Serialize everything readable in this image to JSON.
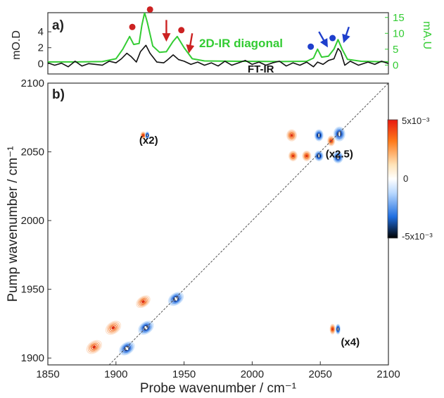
{
  "chart_data": [
    {
      "type": "line",
      "panel_label": "a)",
      "ylabel_left": "mO.D",
      "ylabel_right": "mA.U",
      "left_ticks": [
        "0",
        "2",
        "4"
      ],
      "right_ticks": [
        "0",
        "5",
        "10",
        "15"
      ],
      "left_ylim": [
        -1.3,
        6.4
      ],
      "right_ylim": [
        -2.8,
        16.5
      ],
      "xlim": [
        1850,
        2100
      ],
      "series": [
        {
          "name": "2D-IR diagonal",
          "color": "#33cc33",
          "axis": "right",
          "points": [
            [
              1850,
              1.0
            ],
            [
              1870,
              1.0
            ],
            [
              1890,
              1.1
            ],
            [
              1900,
              2.0
            ],
            [
              1905,
              5.0
            ],
            [
              1910,
              9.0
            ],
            [
              1913,
              6.5
            ],
            [
              1917,
              6.8
            ],
            [
              1919,
              12.5
            ],
            [
              1921,
              16.5
            ],
            [
              1923,
              13.5
            ],
            [
              1927,
              6.0
            ],
            [
              1932,
              4.0
            ],
            [
              1937,
              4.2
            ],
            [
              1942,
              7.5
            ],
            [
              1945,
              9.0
            ],
            [
              1950,
              5.5
            ],
            [
              1956,
              2.0
            ],
            [
              1965,
              1.3
            ],
            [
              1990,
              1.2
            ],
            [
              2020,
              1.1
            ],
            [
              2040,
              1.2
            ],
            [
              2045,
              2.2
            ],
            [
              2048,
              5.0
            ],
            [
              2051,
              2.5
            ],
            [
              2056,
              2.8
            ],
            [
              2060,
              5.0
            ],
            [
              2063,
              8.0
            ],
            [
              2066,
              5.0
            ],
            [
              2070,
              1.8
            ],
            [
              2080,
              1.2
            ],
            [
              2100,
              1.0
            ]
          ]
        },
        {
          "name": "FT-IR",
          "color": "#111111",
          "axis": "left",
          "points": [
            [
              1850,
              0.1
            ],
            [
              1855,
              -0.2
            ],
            [
              1860,
              0.05
            ],
            [
              1865,
              -0.4
            ],
            [
              1870,
              0.3
            ],
            [
              1875,
              -0.3
            ],
            [
              1880,
              0.0
            ],
            [
              1885,
              -0.1
            ],
            [
              1890,
              -0.2
            ],
            [
              1895,
              0.3
            ],
            [
              1900,
              0.1
            ],
            [
              1904,
              0.6
            ],
            [
              1908,
              1.3
            ],
            [
              1911,
              0.9
            ],
            [
              1915,
              0.2
            ],
            [
              1918,
              1.5
            ],
            [
              1922,
              2.3
            ],
            [
              1925,
              1.3
            ],
            [
              1930,
              0.2
            ],
            [
              1935,
              0.1
            ],
            [
              1938,
              0.5
            ],
            [
              1942,
              1.1
            ],
            [
              1946,
              0.5
            ],
            [
              1950,
              0.3
            ],
            [
              1955,
              -0.1
            ],
            [
              1960,
              0.2
            ],
            [
              1965,
              -0.2
            ],
            [
              1970,
              0.1
            ],
            [
              1975,
              -0.3
            ],
            [
              1980,
              0.3
            ],
            [
              1985,
              -0.2
            ],
            [
              1990,
              0.1
            ],
            [
              1995,
              0.4
            ],
            [
              2000,
              -0.1
            ],
            [
              2005,
              0.2
            ],
            [
              2010,
              -0.2
            ],
            [
              2015,
              0.1
            ],
            [
              2020,
              0.3
            ],
            [
              2025,
              -0.3
            ],
            [
              2030,
              0.1
            ],
            [
              2035,
              -0.2
            ],
            [
              2040,
              0.2
            ],
            [
              2045,
              -0.4
            ],
            [
              2048,
              0.2
            ],
            [
              2052,
              -0.1
            ],
            [
              2056,
              0.4
            ],
            [
              2060,
              0.6
            ],
            [
              2063,
              1.9
            ],
            [
              2065,
              1.5
            ],
            [
              2068,
              -0.2
            ],
            [
              2072,
              0.3
            ],
            [
              2078,
              -0.2
            ],
            [
              2085,
              0.2
            ],
            [
              2090,
              -0.1
            ],
            [
              2095,
              0.3
            ],
            [
              2100,
              0.0
            ]
          ]
        }
      ],
      "annotations": [
        {
          "type": "dot",
          "color": "#cc2222",
          "x": 1912,
          "y": 12.0
        },
        {
          "type": "dot",
          "color": "#cc2222",
          "x": 1925,
          "y": 17.5
        },
        {
          "type": "dot",
          "color": "#cc2222",
          "x": 1948,
          "y": 11.0
        },
        {
          "type": "dot",
          "color": "#1f3fcc",
          "x": 2043,
          "y": 5.8
        },
        {
          "type": "dot",
          "color": "#1f3fcc",
          "x": 2059,
          "y": 8.5
        },
        {
          "type": "arrow",
          "color": "#cc2222",
          "x": 1937,
          "y": 14.2,
          "dx": 0,
          "dy": -5.5
        },
        {
          "type": "arrow",
          "color": "#cc2222",
          "x": 1956,
          "y": 10.0,
          "dx": -2.0,
          "dy": -5.0
        },
        {
          "type": "arrow",
          "color": "#1f3fcc",
          "x": 2049,
          "y": 10.5,
          "dx": 5.0,
          "dy": -3.8
        },
        {
          "type": "arrow",
          "color": "#1f3fcc",
          "x": 2071,
          "y": 12.0,
          "dx": -3.0,
          "dy": -3.8
        }
      ]
    },
    {
      "type": "heatmap",
      "panel_label": "b)",
      "xlabel": "Probe wavenumber / cm⁻¹",
      "ylabel": "Pump wavenumber / cm⁻¹",
      "xlim": [
        1850,
        2100
      ],
      "ylim": [
        1895,
        2100
      ],
      "x_ticks": [
        1850,
        1900,
        1950,
        2000,
        2050,
        2100
      ],
      "y_ticks": [
        1900,
        1950,
        2000,
        2050,
        2100
      ],
      "colorbar": {
        "max_label": "5x10⁻³",
        "mid_label": "0",
        "min_label": "-5x10⁻³",
        "range": [
          -0.005,
          0.005
        ]
      },
      "diagonal_line": true,
      "scale_labels": [
        {
          "text": "(x2)",
          "x": 1924,
          "y": 2056
        },
        {
          "text": "(x2.5)",
          "x": 2064,
          "y": 2046
        },
        {
          "text": "(x4)",
          "x": 2072,
          "y": 1909
        }
      ],
      "peaks": [
        {
          "x": 1884,
          "y": 1908,
          "rx": 6,
          "ry": 4,
          "sign": 1,
          "rot": -35
        },
        {
          "x": 1898,
          "y": 1922,
          "rx": 6,
          "ry": 4,
          "sign": 1,
          "rot": -35
        },
        {
          "x": 1920,
          "y": 1941,
          "rx": 5.5,
          "ry": 3.5,
          "sign": 1,
          "rot": -35
        },
        {
          "x": 1908,
          "y": 1907,
          "rx": 6,
          "ry": 4,
          "sign": -1,
          "rot": -35
        },
        {
          "x": 1922,
          "y": 1922,
          "rx": 6,
          "ry": 4,
          "sign": -1,
          "rot": -35
        },
        {
          "x": 1944,
          "y": 1943,
          "rx": 6,
          "ry": 4,
          "sign": -1,
          "rot": -35
        },
        {
          "x": 1920,
          "y": 2062,
          "rx": 1.8,
          "ry": 2.5,
          "sign": 1,
          "rot": 0
        },
        {
          "x": 1923,
          "y": 2062,
          "rx": 1.3,
          "ry": 2.5,
          "sign": -1,
          "rot": 0
        },
        {
          "x": 2029,
          "y": 2062,
          "rx": 3.5,
          "ry": 4,
          "sign": 1,
          "rot": 0
        },
        {
          "x": 2030,
          "y": 2047,
          "rx": 3,
          "ry": 3.5,
          "sign": 1,
          "rot": 0
        },
        {
          "x": 2040,
          "y": 2047,
          "rx": 3,
          "ry": 3.5,
          "sign": 1,
          "rot": 0
        },
        {
          "x": 2058,
          "y": 2058,
          "rx": 2.5,
          "ry": 3.5,
          "sign": 1,
          "rot": 0
        },
        {
          "x": 2049,
          "y": 2062,
          "rx": 3,
          "ry": 4,
          "sign": -1,
          "rot": 0
        },
        {
          "x": 2049,
          "y": 2047,
          "rx": 3,
          "ry": 3.5,
          "sign": -1,
          "rot": 0
        },
        {
          "x": 2064,
          "y": 2063,
          "rx": 4,
          "ry": 5,
          "sign": -1,
          "rot": 0
        },
        {
          "x": 2063,
          "y": 2046,
          "rx": 3.5,
          "ry": 4,
          "sign": -1,
          "rot": 0
        },
        {
          "x": 2059,
          "y": 1921,
          "rx": 1.8,
          "ry": 3.5,
          "sign": 1,
          "rot": 0
        },
        {
          "x": 2063,
          "y": 1921,
          "rx": 1.5,
          "ry": 3.5,
          "sign": -1,
          "rot": 0
        }
      ]
    }
  ],
  "colors": {
    "positive": "#e03010",
    "negative": "#1050d0",
    "frame": "#333333"
  }
}
